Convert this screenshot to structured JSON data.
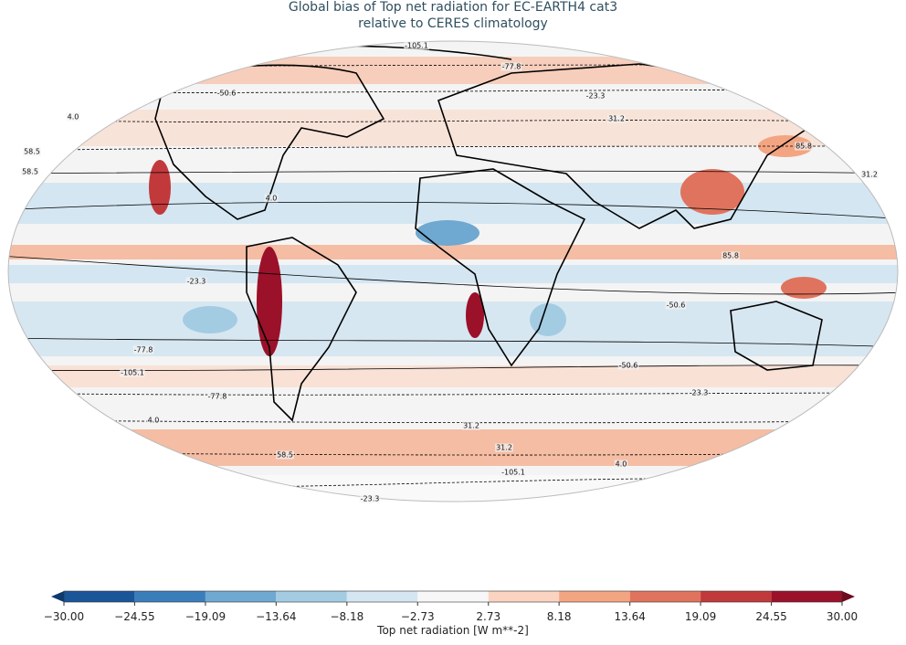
{
  "map": {
    "title": "Global bias of Top net radiation for EC-EARTH4 cat3",
    "subtitle": "relative to CERES climatology",
    "contour_labels": [
      "-105.1",
      "-77.8",
      "-50.6",
      "-23.3",
      "4.0",
      "31.2",
      "58.5",
      "85.8",
      "58.5",
      "31.2",
      "4.0",
      "-23.3",
      "-50.6",
      "-77.8",
      "-105.1",
      "-50.6",
      "-77.8",
      "-23.3",
      "4.0",
      "31.2",
      "58.5",
      "31.2",
      "4.0",
      "-23.3",
      "-105.1",
      "85.8"
    ],
    "colorbar": {
      "label": "Top net radiation [W m**-2]",
      "ticks": [
        {
          "value": -30,
          "label": "−30.00"
        },
        {
          "value": -24.55,
          "label": "−24.55"
        },
        {
          "value": -19.09,
          "label": "−19.09"
        },
        {
          "value": -13.64,
          "label": "−13.64"
        },
        {
          "value": -8.18,
          "label": "−8.18"
        },
        {
          "value": -2.73,
          "label": "−2.73"
        },
        2.73,
        8.18,
        13.64,
        19.09,
        24.55,
        {
          "value": 30,
          "label": "30.00"
        }
      ],
      "colors": [
        "#1a5599",
        "#3a7dbb",
        "#6fa8d0",
        "#a3cce3",
        "#d4e6f1",
        "#f7f7f7",
        "#fbd4c1",
        "#f3a582",
        "#e0735e",
        "#c2393b",
        "#9b1129"
      ],
      "under_color": "#0d3a6e",
      "over_color": "#6e0a1d"
    }
  }
}
